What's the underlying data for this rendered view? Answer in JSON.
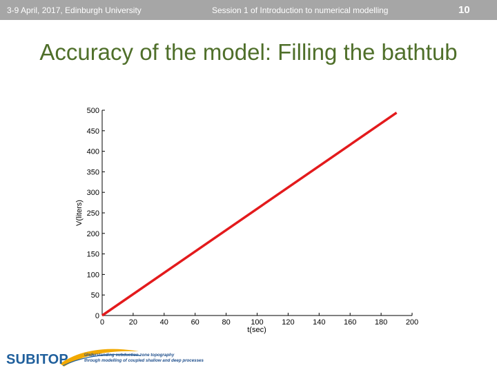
{
  "header": {
    "event": "3-9 April, 2017, Edinburgh University",
    "session": "Session 1 of Introduction to numerical modelling",
    "page_number": "10"
  },
  "slide": {
    "title": "Accuracy of the model: Filling the bathtub"
  },
  "chart_data": {
    "type": "line",
    "title": "",
    "xlabel": "t(sec)",
    "ylabel": "V(liters)",
    "xlim": [
      0,
      200
    ],
    "ylim": [
      0,
      500
    ],
    "xticks": [
      0,
      20,
      40,
      60,
      80,
      100,
      120,
      140,
      160,
      180,
      200
    ],
    "yticks": [
      0,
      50,
      100,
      150,
      200,
      250,
      300,
      350,
      400,
      450,
      500
    ],
    "grid": false,
    "series": [
      {
        "x": [
          0,
          190
        ],
        "y": [
          0,
          494
        ],
        "color": "#e31a1c"
      }
    ]
  },
  "logo": {
    "name": "SUBITOP",
    "tagline_line1": "Understanding subduction zone topography",
    "tagline_line2": "through modelling of coupled shallow and deep processes",
    "color": "#1f5f9c",
    "swoosh_color": "#f2a900"
  }
}
